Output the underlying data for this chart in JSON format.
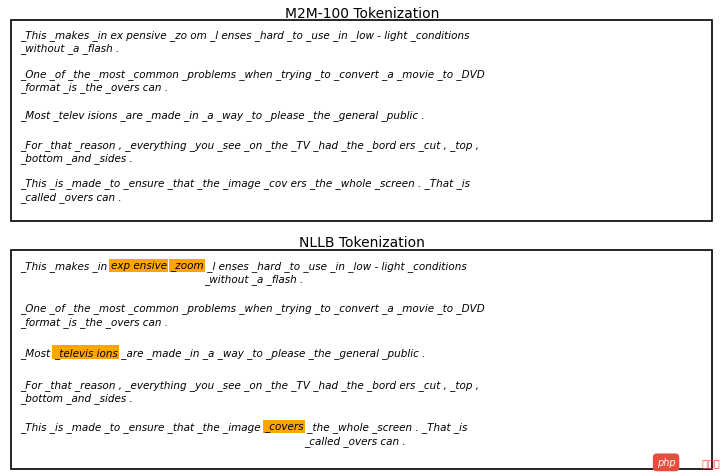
{
  "title1": "M2M-100 Tokenization",
  "title2": "NLLB Tokenization",
  "bg_color": "#ffffff",
  "box_edge_color": "#000000",
  "highlight_orange": "#FFA500",
  "font_size": 7.5,
  "title_font_size": 10,
  "m2m_lines": [
    "_This _makes _in ex pensive _zo om _l enses _hard _to _use _in _low - light _conditions\n_without _a _flash .",
    "_One _of _the _most _common _problems _when _trying _to _convert _a _movie _to _DVD\n_format _is _the _overs can .",
    "_Most _telev isions _are _made _in _a _way _to _please _the _general _public .",
    "_For _that _reason , _everything _you _see _on _the _TV _had _the _bord ers _cut , _top ,\n_bottom _and _sides .",
    "_This _is _made _to _ensure _that _the _image _cov ers _the _whole _screen . _That _is\n_called _overs can ."
  ],
  "nllb_segments": [
    {
      "prefix": "_This _makes _in ",
      "highlighted": [
        {
          "text": "exp ensive",
          "color": "#FFA500"
        },
        {
          "text": " ",
          "color": null
        },
        {
          "text": "_zoom",
          "color": "#FFA500"
        }
      ],
      "suffix": " _l enses _hard _to _use _in _low - light _conditions\n_without _a _flash ."
    },
    {
      "prefix": "_One _of _the _most _common _problems _when _trying _to _convert _a _movie _to _DVD\n_format _is _the _overs can .",
      "highlighted": [],
      "suffix": ""
    },
    {
      "prefix": "_Most ",
      "highlighted": [
        {
          "text": "_televis ions",
          "color": "#FFA500"
        }
      ],
      "suffix": " _are _made _in _a _way _to _please _the _general _public ."
    },
    {
      "prefix": "_For _that _reason , _everything _you _see _on _the _TV _had _the _bord ers _cut , _top ,\n_bottom _and _sides .",
      "highlighted": [],
      "suffix": ""
    },
    {
      "prefix": "_This _is _made _to _ensure _that _the _image ",
      "highlighted": [
        {
          "text": "_covers",
          "color": "#FFA500"
        }
      ],
      "suffix": " _the _whole _screen . _That _is\n_called _overs can ."
    }
  ],
  "php_badge_color": "#e74c3c",
  "php_text": "php",
  "php_text2": " 中文网"
}
